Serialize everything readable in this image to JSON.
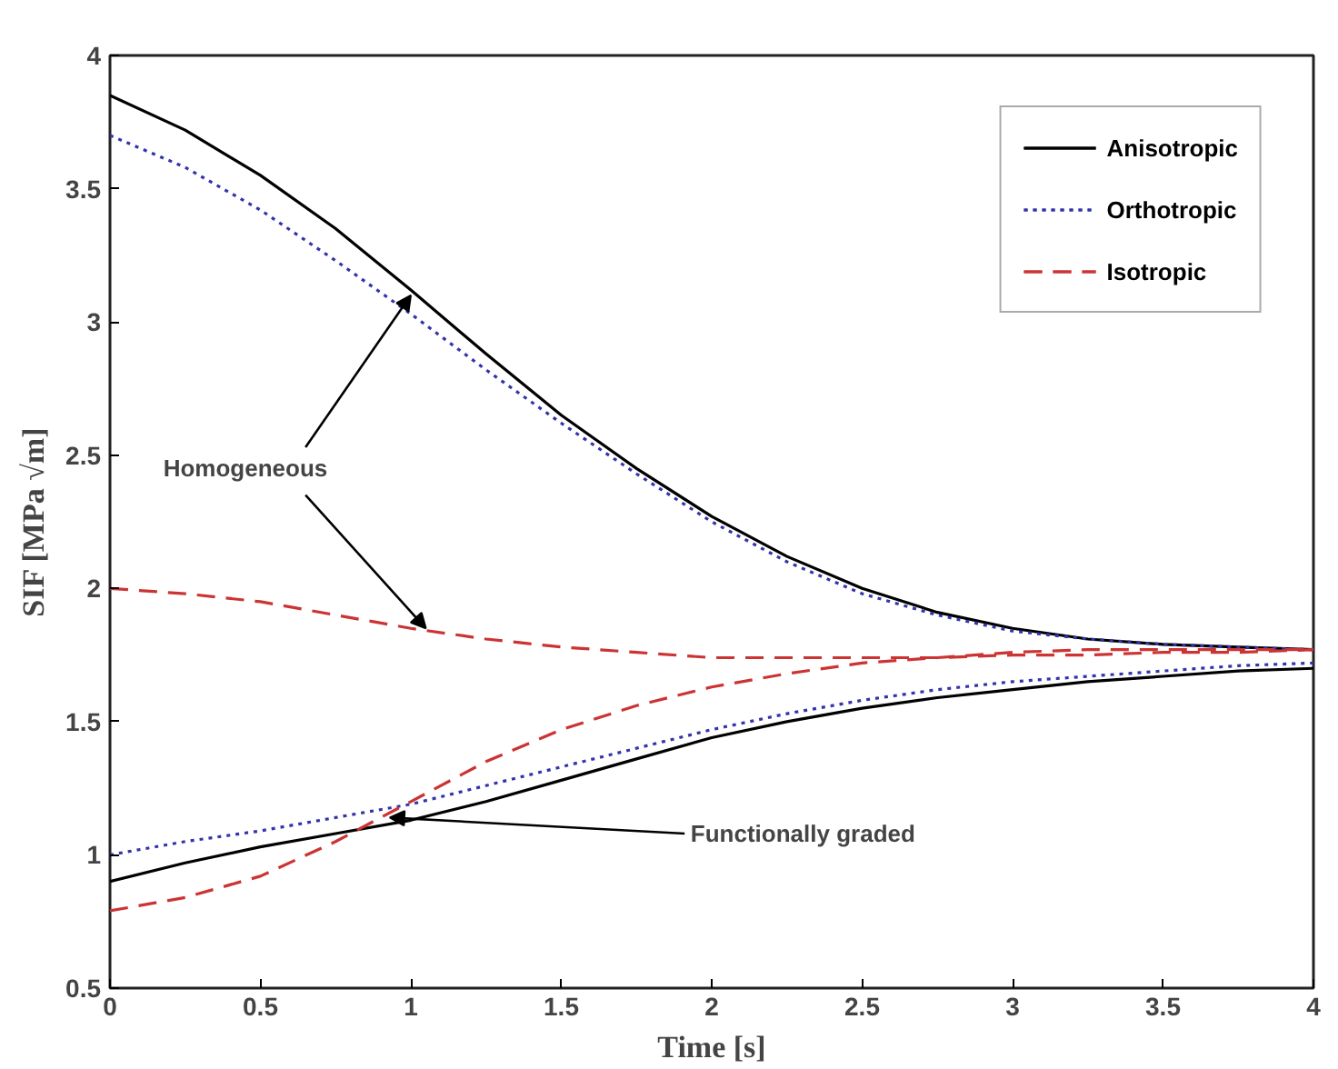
{
  "chart_data": {
    "type": "line",
    "xlabel": "Time [s]",
    "ylabel": "SIF [MPa √m]",
    "x": [
      0,
      0.25,
      0.5,
      0.75,
      1,
      1.25,
      1.5,
      1.75,
      2,
      2.25,
      2.5,
      2.75,
      3,
      3.25,
      3.5,
      3.75,
      4
    ],
    "series": [
      {
        "name": "Anisotropic",
        "color": "#000000",
        "line_style": "solid",
        "values": [
          3.85,
          3.72,
          3.55,
          3.35,
          3.12,
          2.88,
          2.65,
          2.45,
          2.27,
          2.12,
          2.0,
          1.91,
          1.85,
          1.81,
          1.79,
          1.78,
          1.77
        ]
      },
      {
        "name": "Orthotropic",
        "color": "#3333aa",
        "line_style": "dotted",
        "values": [
          3.7,
          3.58,
          3.42,
          3.23,
          3.03,
          2.82,
          2.62,
          2.43,
          2.25,
          2.1,
          1.98,
          1.9,
          1.84,
          1.81,
          1.79,
          1.78,
          1.77
        ]
      },
      {
        "name": "Isotropic",
        "color": "#cc3333",
        "line_style": "dashed",
        "values": [
          2.0,
          1.98,
          1.95,
          1.9,
          1.85,
          1.81,
          1.78,
          1.76,
          1.74,
          1.74,
          1.74,
          1.74,
          1.75,
          1.75,
          1.76,
          1.76,
          1.77
        ]
      },
      {
        "color": "#000000",
        "line_style": "solid",
        "values": [
          0.9,
          0.97,
          1.03,
          1.08,
          1.13,
          1.2,
          1.28,
          1.36,
          1.44,
          1.5,
          1.55,
          1.59,
          1.62,
          1.65,
          1.67,
          1.69,
          1.7
        ]
      },
      {
        "color": "#3333aa",
        "line_style": "dotted",
        "values": [
          1.0,
          1.05,
          1.09,
          1.14,
          1.19,
          1.26,
          1.33,
          1.4,
          1.47,
          1.53,
          1.58,
          1.62,
          1.65,
          1.67,
          1.69,
          1.71,
          1.72
        ]
      },
      {
        "color": "#cc3333",
        "line_style": "dashed",
        "values": [
          0.79,
          0.84,
          0.92,
          1.05,
          1.2,
          1.35,
          1.47,
          1.56,
          1.63,
          1.68,
          1.72,
          1.74,
          1.76,
          1.77,
          1.77,
          1.77,
          1.77
        ]
      }
    ],
    "xlim": [
      0,
      4
    ],
    "ylim": [
      0.5,
      4
    ],
    "xticks": [
      0,
      0.5,
      1,
      1.5,
      2,
      2.5,
      3,
      3.5,
      4
    ],
    "yticks": [
      0.5,
      1,
      1.5,
      2,
      2.5,
      3,
      3.5,
      4
    ],
    "grid": false,
    "legend": "top right",
    "marker": "none",
    "annotations": [
      {
        "text": "Homogeneous",
        "x": 1.0,
        "y": 3.1
      },
      {
        "text": "Functionally graded",
        "x": 0.93,
        "y": 1.14
      }
    ]
  }
}
